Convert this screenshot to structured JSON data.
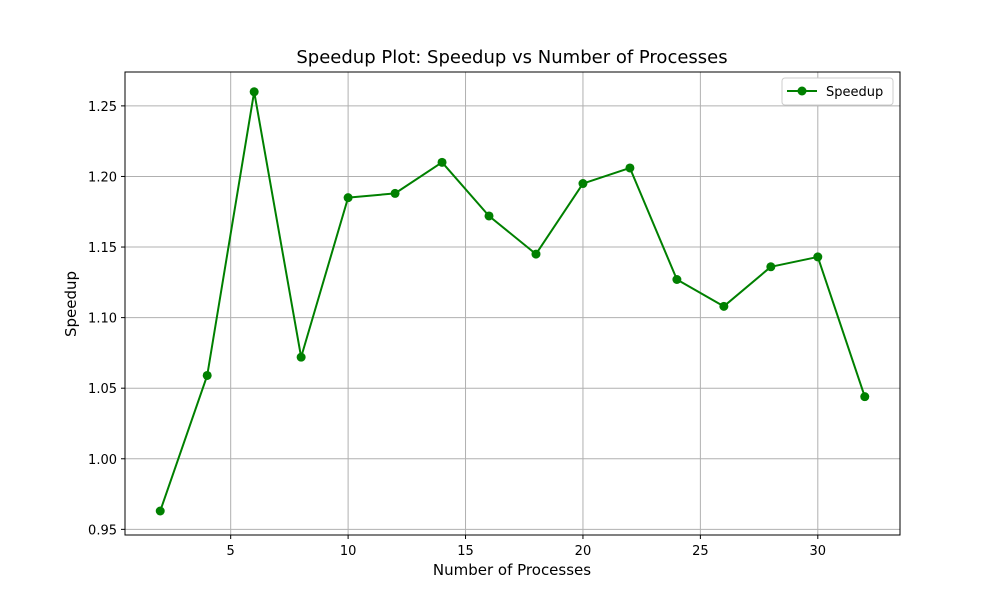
{
  "chart_data": {
    "type": "line",
    "title": "Speedup Plot: Speedup vs Number of Processes",
    "xlabel": "Number of Processes",
    "ylabel": "Speedup",
    "xlim": [
      0.5,
      33.5
    ],
    "ylim": [
      0.946,
      1.274
    ],
    "x_ticks": [
      5,
      10,
      15,
      20,
      25,
      30
    ],
    "y_ticks": [
      0.95,
      1.0,
      1.05,
      1.1,
      1.15,
      1.2,
      1.25
    ],
    "y_tick_labels": [
      "0.95",
      "1.00",
      "1.05",
      "1.10",
      "1.15",
      "1.20",
      "1.25"
    ],
    "grid": true,
    "legend_position": "top-right",
    "series": [
      {
        "name": "Speedup",
        "color": "#008000",
        "marker": "circle",
        "x": [
          2,
          4,
          6,
          8,
          10,
          12,
          14,
          16,
          18,
          20,
          22,
          24,
          26,
          28,
          30,
          32
        ],
        "y": [
          0.963,
          1.059,
          1.26,
          1.072,
          1.185,
          1.188,
          1.21,
          1.172,
          1.145,
          1.195,
          1.206,
          1.127,
          1.108,
          1.136,
          1.143,
          1.044
        ]
      }
    ]
  }
}
